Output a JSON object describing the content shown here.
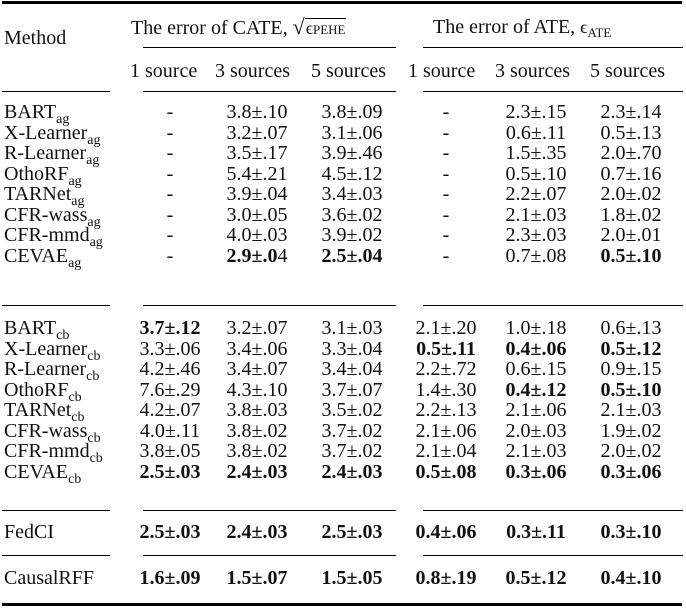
{
  "table": {
    "header": {
      "method_label": "Method",
      "cate_group": "The error of CATE, ",
      "cate_metric_symbol": "√ϵ",
      "cate_metric_sub": "PEHE",
      "ate_group": "The error of ATE, ",
      "ate_metric_symbol": "ϵ",
      "ate_metric_sub": "ATE",
      "sub_columns": [
        "1 source",
        "3 sources",
        "5 sources",
        "1 source",
        "3 sources",
        "5 sources"
      ]
    },
    "groups": [
      {
        "name": "ag",
        "rows": [
          {
            "method": "BART",
            "sub": "ag",
            "cells": [
              {
                "v": "-",
                "b": false
              },
              {
                "v": "3.8±.10",
                "b": false
              },
              {
                "v": "3.8±.09",
                "b": false
              },
              {
                "v": "-",
                "b": false
              },
              {
                "v": "2.3±.15",
                "b": false
              },
              {
                "v": "2.3±.14",
                "b": false
              }
            ]
          },
          {
            "method": "X-Learner",
            "sub": "ag",
            "cells": [
              {
                "v": "-",
                "b": false
              },
              {
                "v": "3.2±.07",
                "b": false
              },
              {
                "v": "3.1±.06",
                "b": false
              },
              {
                "v": "-",
                "b": false
              },
              {
                "v": "0.6±.11",
                "b": false
              },
              {
                "v": "0.5±.13",
                "b": false
              }
            ]
          },
          {
            "method": "R-Learner",
            "sub": "ag",
            "cells": [
              {
                "v": "-",
                "b": false
              },
              {
                "v": "3.5±.17",
                "b": false
              },
              {
                "v": "3.9±.46",
                "b": false
              },
              {
                "v": "-",
                "b": false
              },
              {
                "v": "1.5±.35",
                "b": false
              },
              {
                "v": "2.0±.70",
                "b": false
              }
            ]
          },
          {
            "method": "OthoRF",
            "sub": "ag",
            "cells": [
              {
                "v": "-",
                "b": false
              },
              {
                "v": "5.4±.21",
                "b": false
              },
              {
                "v": "4.5±.12",
                "b": false
              },
              {
                "v": "-",
                "b": false
              },
              {
                "v": "0.5±.10",
                "b": false
              },
              {
                "v": "0.7±.16",
                "b": false
              }
            ]
          },
          {
            "method": "TARNet",
            "sub": "ag",
            "cells": [
              {
                "v": "-",
                "b": false
              },
              {
                "v": "3.9±.04",
                "b": false
              },
              {
                "v": "3.4±.03",
                "b": false
              },
              {
                "v": "-",
                "b": false
              },
              {
                "v": "2.2±.07",
                "b": false
              },
              {
                "v": "2.0±.02",
                "b": false
              }
            ]
          },
          {
            "method": "CFR-wass",
            "sub": "ag",
            "cells": [
              {
                "v": "-",
                "b": false
              },
              {
                "v": "3.0±.05",
                "b": false
              },
              {
                "v": "3.6±.02",
                "b": false
              },
              {
                "v": "-",
                "b": false
              },
              {
                "v": "2.1±.03",
                "b": false
              },
              {
                "v": "1.8±.02",
                "b": false
              }
            ]
          },
          {
            "method": "CFR-mmd",
            "sub": "ag",
            "cells": [
              {
                "v": "-",
                "b": false
              },
              {
                "v": "4.0±.03",
                "b": false
              },
              {
                "v": "3.9±.02",
                "b": false
              },
              {
                "v": "-",
                "b": false
              },
              {
                "v": "2.3±.03",
                "b": false
              },
              {
                "v": "2.0±.01",
                "b": false
              }
            ]
          },
          {
            "method": "CEVAE",
            "sub": "ag",
            "cells": [
              {
                "v": "-",
                "b": false
              },
              {
                "v": "2.9±.0",
                "b": true,
                "tail": "4"
              },
              {
                "v": "2.5±.04",
                "b": true
              },
              {
                "v": "-",
                "b": false
              },
              {
                "v": "0.7±.08",
                "b": false
              },
              {
                "v": "0.5±.10",
                "b": true
              }
            ]
          }
        ]
      },
      {
        "name": "cb",
        "rows": [
          {
            "method": "BART",
            "sub": "cb",
            "cells": [
              {
                "v": "3.7±.12",
                "b": true
              },
              {
                "v": "3.2±.07",
                "b": false
              },
              {
                "v": "3.1±.03",
                "b": false
              },
              {
                "v": "2.1±.20",
                "b": false
              },
              {
                "v": "1.0±.18",
                "b": false
              },
              {
                "v": "0.6±.13",
                "b": false
              }
            ]
          },
          {
            "method": "X-Learner",
            "sub": "cb",
            "cells": [
              {
                "v": "3.3±.06",
                "b": false
              },
              {
                "v": "3.4±.06",
                "b": false
              },
              {
                "v": "3.3±.04",
                "b": false
              },
              {
                "v": "0.5±.11",
                "b": true
              },
              {
                "v": "0.4±.06",
                "b": true
              },
              {
                "v": "0.5±.12",
                "b": true
              }
            ]
          },
          {
            "method": "R-Learner",
            "sub": "cb",
            "cells": [
              {
                "v": "4.2±.46",
                "b": false
              },
              {
                "v": "3.4±.07",
                "b": false
              },
              {
                "v": "3.4±.04",
                "b": false
              },
              {
                "v": "2.2±.72",
                "b": false
              },
              {
                "v": "0.6±.15",
                "b": false
              },
              {
                "v": "0.9±.15",
                "b": false
              }
            ]
          },
          {
            "method": "OthoRF",
            "sub": "cb",
            "cells": [
              {
                "v": "7.6±.29",
                "b": false
              },
              {
                "v": "4.3±.10",
                "b": false
              },
              {
                "v": "3.7±.07",
                "b": false
              },
              {
                "v": "1.4±.30",
                "b": false
              },
              {
                "v": "0.4±.12",
                "b": true
              },
              {
                "v": "0.5±.10",
                "b": true
              }
            ]
          },
          {
            "method": "TARNet",
            "sub": "cb",
            "cells": [
              {
                "v": "4.2±.07",
                "b": false
              },
              {
                "v": "3.8±.03",
                "b": false
              },
              {
                "v": "3.5±.02",
                "b": false
              },
              {
                "v": "2.2±.13",
                "b": false
              },
              {
                "v": "2.1±.06",
                "b": false
              },
              {
                "v": "2.1±.03",
                "b": false
              }
            ]
          },
          {
            "method": "CFR-wass",
            "sub": "cb",
            "cells": [
              {
                "v": "4.0±.11",
                "b": false
              },
              {
                "v": "3.8±.02",
                "b": false
              },
              {
                "v": "3.7±.02",
                "b": false
              },
              {
                "v": "2.1±.06",
                "b": false
              },
              {
                "v": "2.0±.03",
                "b": false
              },
              {
                "v": "1.9±.02",
                "b": false
              }
            ]
          },
          {
            "method": "CFR-mmd",
            "sub": "cb",
            "cells": [
              {
                "v": "3.8±.05",
                "b": false
              },
              {
                "v": "3.8±.02",
                "b": false
              },
              {
                "v": "3.7±.02",
                "b": false
              },
              {
                "v": "2.1±.04",
                "b": false
              },
              {
                "v": "2.1±.03",
                "b": false
              },
              {
                "v": "2.0±.02",
                "b": false
              }
            ]
          },
          {
            "method": "CEVAE",
            "sub": "cb",
            "cells": [
              {
                "v": "2.5±.03",
                "b": true
              },
              {
                "v": "2.4±.03",
                "b": true
              },
              {
                "v": "2.4±.03",
                "b": true
              },
              {
                "v": "0.5±.08",
                "b": true
              },
              {
                "v": "0.3±.06",
                "b": true
              },
              {
                "v": "0.3±.06",
                "b": true
              }
            ]
          }
        ]
      },
      {
        "name": "fedci",
        "rows": [
          {
            "method": "FedCI",
            "sub": "",
            "cells": [
              {
                "v": "2.5±.03",
                "b": true
              },
              {
                "v": "2.4±.03",
                "b": true
              },
              {
                "v": "2.5±.03",
                "b": true
              },
              {
                "v": "0.4±.06",
                "b": true
              },
              {
                "v": "0.3±.11",
                "b": true
              },
              {
                "v": "0.3±.10",
                "b": true
              }
            ]
          }
        ]
      },
      {
        "name": "causalrff",
        "rows": [
          {
            "method": "CausalRFF",
            "sub": "",
            "cells": [
              {
                "v": "1.6±.09",
                "b": true
              },
              {
                "v": "1.5±.07",
                "b": true
              },
              {
                "v": "1.5±.05",
                "b": true
              },
              {
                "v": "0.8±.19",
                "b": true
              },
              {
                "v": "0.5±.12",
                "b": true
              },
              {
                "v": "0.4±.10",
                "b": true
              }
            ]
          }
        ]
      }
    ]
  }
}
